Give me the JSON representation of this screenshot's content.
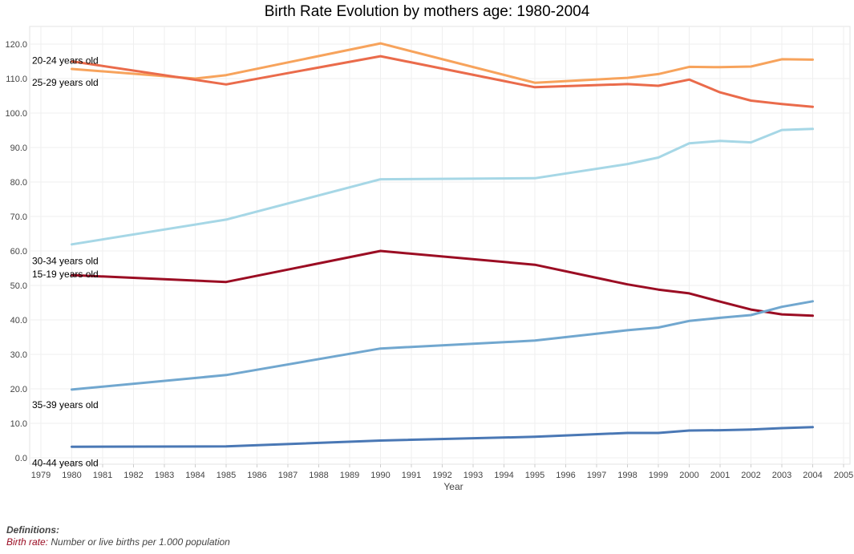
{
  "chart_data": {
    "type": "line",
    "title": "Birth Rate Evolution by mothers age: 1980-2004",
    "xlabel": "Year",
    "ylabel": "",
    "xlim": [
      1979,
      2005
    ],
    "ylim": [
      0,
      125
    ],
    "x_ticks": [
      "1979",
      "1980",
      "1981",
      "1982",
      "1983",
      "1984",
      "1985",
      "1986",
      "1987",
      "1988",
      "1989",
      "1990",
      "1991",
      "1992",
      "1993",
      "1994",
      "1995",
      "1996",
      "1997",
      "1998",
      "1999",
      "2000",
      "2001",
      "2002",
      "2003",
      "2004",
      "2005"
    ],
    "y_ticks": [
      "0.0",
      "10.0",
      "20.0",
      "30.0",
      "40.0",
      "50.0",
      "60.0",
      "70.0",
      "80.0",
      "90.0",
      "100.0",
      "110.0",
      "120.0"
    ],
    "grid": true,
    "series": [
      {
        "name": "20-24 years old",
        "color": "#f7a35c",
        "label_value": 115.2,
        "points": [
          [
            1980,
            112.8
          ],
          [
            1984,
            110.0
          ],
          [
            1985,
            111.0
          ],
          [
            1990,
            120.2
          ],
          [
            1995,
            108.8
          ],
          [
            1998,
            110.2
          ],
          [
            1999,
            111.3
          ],
          [
            2000,
            113.4
          ],
          [
            2001,
            113.3
          ],
          [
            2002,
            113.5
          ],
          [
            2003,
            115.6
          ],
          [
            2004,
            115.5
          ]
        ]
      },
      {
        "name": "25-29 years old",
        "color": "#ea6b4b",
        "label_value": 108.8,
        "points": [
          [
            1980,
            115.0
          ],
          [
            1985,
            108.3
          ],
          [
            1990,
            116.5
          ],
          [
            1995,
            107.5
          ],
          [
            1998,
            108.4
          ],
          [
            1999,
            107.9
          ],
          [
            2000,
            109.7
          ],
          [
            2001,
            106.0
          ],
          [
            2002,
            103.6
          ],
          [
            2003,
            102.6
          ],
          [
            2004,
            101.8
          ]
        ]
      },
      {
        "name": "30-34 years old",
        "color": "#a6d7e6",
        "label_value": 57.1,
        "points": [
          [
            1980,
            61.9
          ],
          [
            1985,
            69.1
          ],
          [
            1990,
            80.8
          ],
          [
            1995,
            81.1
          ],
          [
            1998,
            85.2
          ],
          [
            1999,
            87.1
          ],
          [
            2000,
            91.2
          ],
          [
            2001,
            91.9
          ],
          [
            2002,
            91.5
          ],
          [
            2003,
            95.1
          ],
          [
            2004,
            95.4
          ]
        ]
      },
      {
        "name": "15-19 years old",
        "color": "#9b0d23",
        "label_value": 53.2,
        "points": [
          [
            1980,
            53.0
          ],
          [
            1985,
            51.0
          ],
          [
            1990,
            60.0
          ],
          [
            1995,
            56.0
          ],
          [
            1998,
            50.3
          ],
          [
            1999,
            48.8
          ],
          [
            2000,
            47.7
          ],
          [
            2001,
            45.3
          ],
          [
            2002,
            43.0
          ],
          [
            2003,
            41.6
          ],
          [
            2004,
            41.2
          ]
        ]
      },
      {
        "name": "35-39 years old",
        "color": "#71a7cf",
        "label_value": 15.4,
        "points": [
          [
            1980,
            19.8
          ],
          [
            1985,
            24.0
          ],
          [
            1990,
            31.7
          ],
          [
            1995,
            34.0
          ],
          [
            1998,
            37.0
          ],
          [
            1999,
            37.8
          ],
          [
            2000,
            39.7
          ],
          [
            2001,
            40.6
          ],
          [
            2002,
            41.4
          ],
          [
            2003,
            43.8
          ],
          [
            2004,
            45.4
          ]
        ]
      },
      {
        "name": "40-44 years old",
        "color": "#4a78b5",
        "label_value": -1.5,
        "points": [
          [
            1980,
            3.2
          ],
          [
            1985,
            3.3
          ],
          [
            1990,
            5.0
          ],
          [
            1995,
            6.1
          ],
          [
            1998,
            7.2
          ],
          [
            1999,
            7.2
          ],
          [
            2000,
            7.9
          ],
          [
            2001,
            8.0
          ],
          [
            2002,
            8.2
          ],
          [
            2003,
            8.6
          ],
          [
            2004,
            8.9
          ]
        ]
      }
    ]
  },
  "definitions": {
    "heading": "Definitions:",
    "term": "Birth rate:",
    "text": "Number or live births per 1.000 population"
  }
}
